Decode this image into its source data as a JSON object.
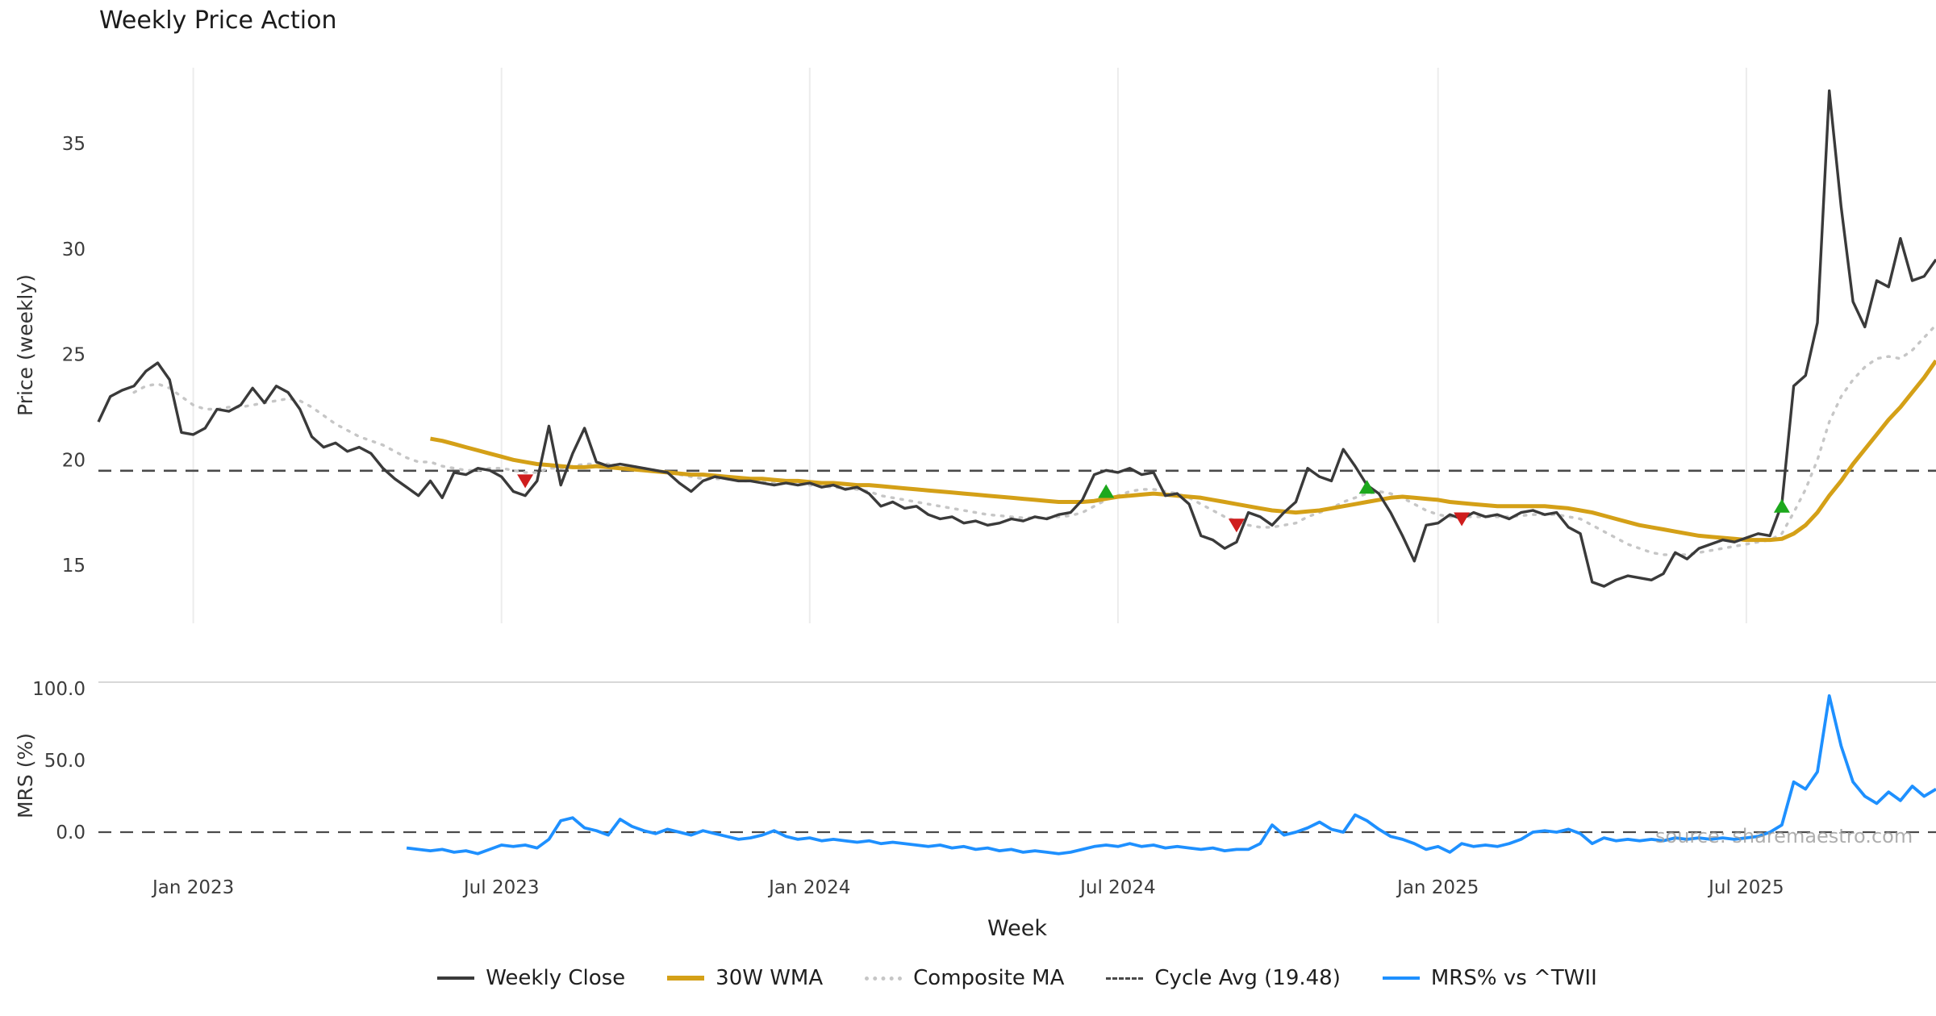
{
  "title": "Weekly Price Action",
  "watermark": "source: sharemaestro.com",
  "colors": {
    "weekly_close": "#3a3a3a",
    "wma": "#d4a017",
    "composite": "#c6c6c6",
    "cycle_avg": "#4a4a4a",
    "mrs": "#1e90ff",
    "buy": "#1da81d",
    "sell": "#cf1d1d",
    "grid": "#ececec",
    "spine": "#d8d8d8",
    "tick": "#3c3c3c",
    "watermark_color": "#9a9a9a"
  },
  "price_panel": {
    "ylabel": "Price (weekly)",
    "yticks": [
      15,
      20,
      25,
      30,
      35
    ],
    "ylim": [
      12.3,
      38.6
    ],
    "cycle_avg": 19.48
  },
  "mrs_panel": {
    "ylabel": "MRS (%)",
    "yticks": [
      0,
      50,
      100
    ],
    "ytick_labels": [
      "0.0",
      "50.0",
      "100.0"
    ],
    "ylim": [
      -26,
      104
    ]
  },
  "x_axis": {
    "label": "Week",
    "ticks": [
      {
        "index": 8,
        "label": "Jan 2023"
      },
      {
        "index": 34,
        "label": "Jul 2023"
      },
      {
        "index": 60,
        "label": "Jan 2024"
      },
      {
        "index": 86,
        "label": "Jul 2024"
      },
      {
        "index": 113,
        "label": "Jan 2025"
      },
      {
        "index": 139,
        "label": "Jul 2025"
      }
    ]
  },
  "legend": {
    "items": [
      {
        "label": "Weekly Close",
        "swatch": "line",
        "color": "weekly_close"
      },
      {
        "label": "30W WMA",
        "swatch": "line-thick",
        "color": "wma"
      },
      {
        "label": "Composite MA",
        "swatch": "dotted",
        "color": "composite"
      },
      {
        "label": "Cycle Avg (19.48)",
        "swatch": "dashed",
        "color": "cycle_avg"
      },
      {
        "label": "MRS% vs ^TWII",
        "swatch": "line",
        "color": "mrs"
      }
    ]
  },
  "chart_data": {
    "type": "line",
    "x_unit": "week_index",
    "n_weeks": 156,
    "title": "Weekly Price Action",
    "xlabel": "Week",
    "cycle_avg": 19.48,
    "series": [
      {
        "name": "Weekly Close",
        "role": "close",
        "panel": "price",
        "start_index": 0,
        "values": [
          21.8,
          23.0,
          23.3,
          23.5,
          24.2,
          24.6,
          23.8,
          21.3,
          21.2,
          21.5,
          22.4,
          22.3,
          22.6,
          23.4,
          22.7,
          23.5,
          23.2,
          22.4,
          21.1,
          20.6,
          20.8,
          20.4,
          20.6,
          20.3,
          19.6,
          19.1,
          18.7,
          18.3,
          19.0,
          18.2,
          19.4,
          19.3,
          19.6,
          19.5,
          19.2,
          18.5,
          18.3,
          19.0,
          21.6,
          18.8,
          20.3,
          21.5,
          19.9,
          19.7,
          19.8,
          19.7,
          19.6,
          19.5,
          19.4,
          18.9,
          18.5,
          19.0,
          19.2,
          19.1,
          19.0,
          19.0,
          18.9,
          18.8,
          18.9,
          18.8,
          18.9,
          18.7,
          18.8,
          18.6,
          18.7,
          18.4,
          17.8,
          18.0,
          17.7,
          17.8,
          17.4,
          17.2,
          17.3,
          17.0,
          17.1,
          16.9,
          17.0,
          17.2,
          17.1,
          17.3,
          17.2,
          17.4,
          17.5,
          18.1,
          19.3,
          19.5,
          19.4,
          19.6,
          19.3,
          19.4,
          18.3,
          18.4,
          17.9,
          16.4,
          16.2,
          15.8,
          16.1,
          17.5,
          17.3,
          16.9,
          17.5,
          18.0,
          19.6,
          19.2,
          19.0,
          20.5,
          19.7,
          18.8,
          18.4,
          17.5,
          16.4,
          15.2,
          16.9,
          17.0,
          17.4,
          17.2,
          17.5,
          17.3,
          17.4,
          17.2,
          17.5,
          17.6,
          17.4,
          17.5,
          16.8,
          16.5,
          14.2,
          14.0,
          14.3,
          14.5,
          14.4,
          14.3,
          14.6,
          15.6,
          15.3,
          15.8,
          16.0,
          16.2,
          16.1,
          16.3,
          16.5,
          16.4,
          17.9,
          23.5,
          24.0,
          26.5,
          37.5,
          32.0,
          27.5,
          26.3,
          28.5,
          28.2,
          30.5,
          28.5,
          28.7,
          29.5
        ]
      },
      {
        "name": "30W WMA",
        "role": "wma",
        "panel": "price",
        "start_index": 28,
        "values": [
          21.0,
          20.9,
          20.75,
          20.6,
          20.45,
          20.3,
          20.15,
          20.0,
          19.9,
          19.8,
          19.75,
          19.7,
          19.65,
          19.65,
          19.7,
          19.65,
          19.6,
          19.55,
          19.5,
          19.45,
          19.4,
          19.35,
          19.3,
          19.3,
          19.25,
          19.2,
          19.15,
          19.1,
          19.1,
          19.05,
          19.0,
          19.0,
          18.95,
          18.9,
          18.9,
          18.85,
          18.8,
          18.8,
          18.75,
          18.7,
          18.65,
          18.6,
          18.55,
          18.5,
          18.45,
          18.4,
          18.35,
          18.3,
          18.25,
          18.2,
          18.15,
          18.1,
          18.05,
          18.0,
          18.0,
          18.0,
          18.05,
          18.15,
          18.25,
          18.3,
          18.35,
          18.4,
          18.35,
          18.3,
          18.25,
          18.2,
          18.1,
          18.0,
          17.9,
          17.8,
          17.7,
          17.6,
          17.55,
          17.5,
          17.55,
          17.6,
          17.7,
          17.8,
          17.9,
          18.0,
          18.1,
          18.2,
          18.25,
          18.2,
          18.15,
          18.1,
          18.0,
          17.95,
          17.9,
          17.85,
          17.8,
          17.8,
          17.8,
          17.8,
          17.8,
          17.75,
          17.7,
          17.6,
          17.5,
          17.35,
          17.2,
          17.05,
          16.9,
          16.8,
          16.7,
          16.6,
          16.5,
          16.4,
          16.35,
          16.3,
          16.25,
          16.2,
          16.2,
          16.2,
          16.25,
          16.5,
          16.9,
          17.5,
          18.3,
          19.0,
          19.8,
          20.5,
          21.2,
          21.9,
          22.5,
          23.2,
          23.9,
          24.7
        ]
      },
      {
        "name": "Composite MA",
        "role": "composite",
        "panel": "price",
        "start_index": 3,
        "values": [
          23.2,
          23.5,
          23.6,
          23.4,
          23.0,
          22.6,
          22.4,
          22.4,
          22.5,
          22.5,
          22.6,
          22.7,
          22.8,
          22.9,
          22.8,
          22.5,
          22.1,
          21.7,
          21.4,
          21.1,
          20.9,
          20.7,
          20.4,
          20.1,
          19.9,
          19.9,
          19.7,
          19.6,
          19.5,
          19.5,
          19.6,
          19.6,
          19.5,
          19.4,
          19.4,
          19.6,
          19.6,
          19.7,
          19.8,
          19.8,
          19.8,
          19.7,
          19.7,
          19.6,
          19.5,
          19.4,
          19.3,
          19.2,
          19.1,
          19.1,
          19.1,
          19.0,
          19.0,
          18.95,
          18.9,
          18.9,
          18.85,
          18.8,
          18.75,
          18.7,
          18.65,
          18.6,
          18.5,
          18.3,
          18.2,
          18.1,
          18.0,
          17.9,
          17.8,
          17.7,
          17.6,
          17.5,
          17.4,
          17.35,
          17.3,
          17.25,
          17.25,
          17.25,
          17.3,
          17.35,
          17.5,
          17.8,
          18.1,
          18.3,
          18.5,
          18.6,
          18.6,
          18.5,
          18.4,
          18.2,
          17.9,
          17.6,
          17.3,
          17.1,
          16.9,
          16.8,
          16.8,
          16.9,
          17.0,
          17.3,
          17.5,
          17.7,
          18.0,
          18.2,
          18.4,
          18.5,
          18.4,
          18.2,
          17.9,
          17.6,
          17.4,
          17.3,
          17.3,
          17.3,
          17.3,
          17.3,
          17.3,
          17.35,
          17.4,
          17.4,
          17.4,
          17.3,
          17.2,
          16.9,
          16.6,
          16.3,
          16.0,
          15.8,
          15.6,
          15.5,
          15.5,
          15.5,
          15.6,
          15.7,
          15.8,
          15.9,
          16.0,
          16.1,
          16.2,
          16.5,
          17.5,
          18.6,
          20.0,
          21.8,
          23.0,
          23.8,
          24.4,
          24.8,
          24.9,
          24.8,
          25.2,
          25.8,
          26.4
        ]
      },
      {
        "name": "MRS% vs ^TWII",
        "role": "mrs",
        "panel": "mrs",
        "start_index": 26,
        "values": [
          -11,
          -12,
          -13,
          -12,
          -14,
          -13,
          -15,
          -12,
          -9,
          -10,
          -9,
          -11,
          -5,
          8,
          10,
          3,
          1,
          -2,
          9,
          4,
          1,
          -1,
          2,
          0,
          -2,
          1,
          -1,
          -3,
          -5,
          -4,
          -2,
          1,
          -3,
          -5,
          -4,
          -6,
          -5,
          -6,
          -7,
          -6,
          -8,
          -7,
          -8,
          -9,
          -10,
          -9,
          -11,
          -10,
          -12,
          -11,
          -13,
          -12,
          -14,
          -13,
          -14,
          -15,
          -14,
          -12,
          -10,
          -9,
          -10,
          -8,
          -10,
          -9,
          -11,
          -10,
          -11,
          -12,
          -11,
          -13,
          -12,
          -12,
          -8,
          5,
          -2,
          0,
          3,
          7,
          2,
          0,
          12,
          8,
          2,
          -3,
          -5,
          -8,
          -12,
          -10,
          -14,
          -8,
          -10,
          -9,
          -10,
          -8,
          -5,
          0,
          1,
          0,
          2,
          -1,
          -8,
          -4,
          -6,
          -5,
          -6,
          -5,
          -6,
          -4,
          -5,
          -4,
          -5,
          -4,
          -5,
          -4,
          -3,
          0,
          5,
          35,
          30,
          42,
          95,
          60,
          35,
          25,
          20,
          28,
          22,
          32,
          25,
          30
        ]
      }
    ],
    "signals": {
      "buy": [
        {
          "week": 85,
          "price": 18.5
        },
        {
          "week": 107,
          "price": 18.7
        },
        {
          "week": 142,
          "price": 17.8
        }
      ],
      "sell": [
        {
          "week": 36,
          "price": 19.0
        },
        {
          "week": 96,
          "price": 16.9
        },
        {
          "week": 115,
          "price": 17.2
        }
      ]
    }
  }
}
